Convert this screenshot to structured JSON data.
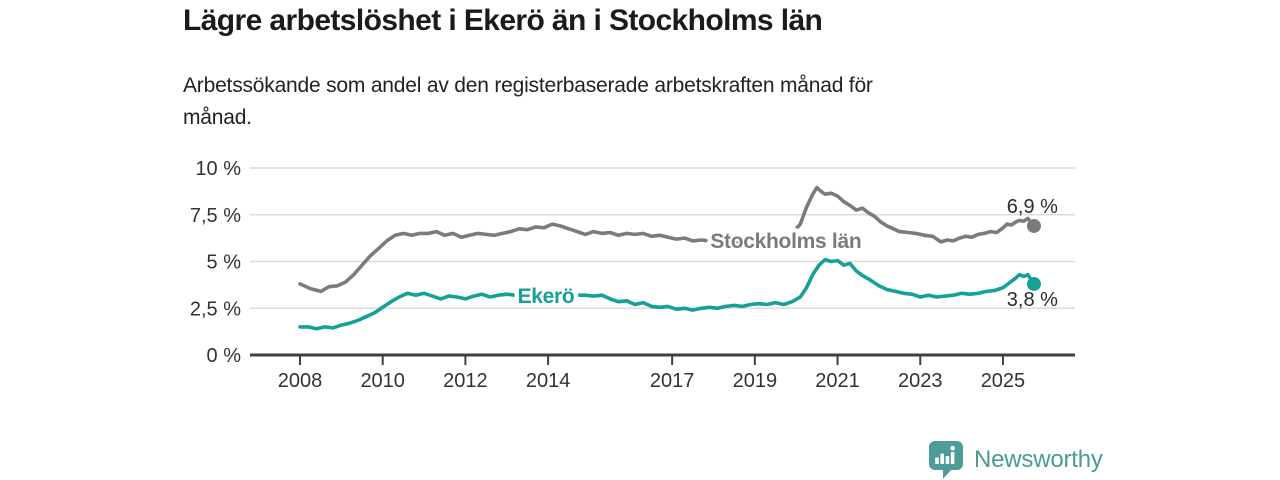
{
  "header": {
    "title": "Lägre arbetslöshet i Ekerö än i Stockholms län",
    "subtitle_lines": [
      "Arbetssökande som andel av den registerbaserade arbetskraften månad för",
      "månad."
    ]
  },
  "chart_data": {
    "type": "line",
    "title": "Lägre arbetslöshet i Ekerö än i Stockholms län",
    "xlabel": "",
    "ylabel": "",
    "unit": "%",
    "ylim": [
      0,
      10
    ],
    "x_range": [
      2008,
      2025.75
    ],
    "grid": "horizontal",
    "legend": "inline-labels",
    "y_ticks": [
      {
        "value": 0,
        "label": "0 %"
      },
      {
        "value": 2.5,
        "label": "2,5 %"
      },
      {
        "value": 5,
        "label": "5 %"
      },
      {
        "value": 7.5,
        "label": "7,5 %"
      },
      {
        "value": 10,
        "label": "10 %"
      }
    ],
    "x_ticks": [
      {
        "value": 2008,
        "label": "2008"
      },
      {
        "value": 2010,
        "label": "2010"
      },
      {
        "value": 2012,
        "label": "2012"
      },
      {
        "value": 2014,
        "label": "2014"
      },
      {
        "value": 2017,
        "label": "2017"
      },
      {
        "value": 2019,
        "label": "2019"
      },
      {
        "value": 2021,
        "label": "2021"
      },
      {
        "value": 2023,
        "label": "2023"
      },
      {
        "value": 2025,
        "label": "2025"
      }
    ],
    "series": [
      {
        "name": "Stockholms län",
        "color": "#7b7b7b",
        "end_value": 6.9,
        "end_value_label": "6,9 %",
        "end_label_position": "above",
        "label_pos": {
          "year": 2019.75,
          "value": 6.1
        },
        "points": [
          [
            2008.0,
            3.8
          ],
          [
            2008.25,
            3.55
          ],
          [
            2008.5,
            3.4
          ],
          [
            2008.7,
            3.65
          ],
          [
            2008.9,
            3.7
          ],
          [
            2009.1,
            3.9
          ],
          [
            2009.3,
            4.3
          ],
          [
            2009.5,
            4.8
          ],
          [
            2009.7,
            5.3
          ],
          [
            2009.9,
            5.7
          ],
          [
            2010.1,
            6.1
          ],
          [
            2010.3,
            6.4
          ],
          [
            2010.5,
            6.5
          ],
          [
            2010.7,
            6.4
          ],
          [
            2010.9,
            6.5
          ],
          [
            2011.1,
            6.5
          ],
          [
            2011.3,
            6.6
          ],
          [
            2011.5,
            6.4
          ],
          [
            2011.7,
            6.5
          ],
          [
            2011.9,
            6.3
          ],
          [
            2012.1,
            6.4
          ],
          [
            2012.3,
            6.5
          ],
          [
            2012.5,
            6.45
          ],
          [
            2012.7,
            6.4
          ],
          [
            2012.9,
            6.5
          ],
          [
            2013.1,
            6.6
          ],
          [
            2013.3,
            6.75
          ],
          [
            2013.5,
            6.7
          ],
          [
            2013.7,
            6.85
          ],
          [
            2013.9,
            6.8
          ],
          [
            2014.1,
            7.0
          ],
          [
            2014.3,
            6.9
          ],
          [
            2014.5,
            6.75
          ],
          [
            2014.7,
            6.6
          ],
          [
            2014.9,
            6.45
          ],
          [
            2015.1,
            6.6
          ],
          [
            2015.3,
            6.5
          ],
          [
            2015.5,
            6.55
          ],
          [
            2015.7,
            6.4
          ],
          [
            2015.9,
            6.5
          ],
          [
            2016.1,
            6.45
          ],
          [
            2016.3,
            6.5
          ],
          [
            2016.5,
            6.35
          ],
          [
            2016.7,
            6.4
          ],
          [
            2016.9,
            6.3
          ],
          [
            2017.1,
            6.2
          ],
          [
            2017.3,
            6.25
          ],
          [
            2017.5,
            6.1
          ],
          [
            2017.7,
            6.15
          ],
          [
            2017.9,
            6.1
          ],
          [
            2018.1,
            6.15
          ],
          [
            2018.3,
            6.05
          ],
          [
            2018.5,
            6.0
          ],
          [
            2018.7,
            6.1
          ],
          [
            2018.9,
            6.05
          ],
          [
            2019.1,
            6.15
          ],
          [
            2019.3,
            6.2
          ],
          [
            2019.5,
            6.25
          ],
          [
            2019.7,
            6.35
          ],
          [
            2019.9,
            6.5
          ],
          [
            2020.1,
            7.0
          ],
          [
            2020.25,
            7.9
          ],
          [
            2020.4,
            8.6
          ],
          [
            2020.5,
            8.95
          ],
          [
            2020.6,
            8.75
          ],
          [
            2020.7,
            8.6
          ],
          [
            2020.85,
            8.65
          ],
          [
            2021.0,
            8.5
          ],
          [
            2021.15,
            8.2
          ],
          [
            2021.3,
            8.0
          ],
          [
            2021.45,
            7.75
          ],
          [
            2021.6,
            7.85
          ],
          [
            2021.75,
            7.6
          ],
          [
            2021.9,
            7.4
          ],
          [
            2022.05,
            7.1
          ],
          [
            2022.2,
            6.9
          ],
          [
            2022.35,
            6.75
          ],
          [
            2022.5,
            6.6
          ],
          [
            2022.7,
            6.55
          ],
          [
            2022.9,
            6.5
          ],
          [
            2023.1,
            6.4
          ],
          [
            2023.3,
            6.35
          ],
          [
            2023.5,
            6.05
          ],
          [
            2023.65,
            6.15
          ],
          [
            2023.8,
            6.1
          ],
          [
            2023.95,
            6.25
          ],
          [
            2024.1,
            6.35
          ],
          [
            2024.25,
            6.3
          ],
          [
            2024.4,
            6.45
          ],
          [
            2024.55,
            6.5
          ],
          [
            2024.7,
            6.6
          ],
          [
            2024.85,
            6.55
          ],
          [
            2025.0,
            6.8
          ],
          [
            2025.1,
            7.0
          ],
          [
            2025.2,
            6.95
          ],
          [
            2025.3,
            7.1
          ],
          [
            2025.4,
            7.2
          ],
          [
            2025.5,
            7.15
          ],
          [
            2025.6,
            7.3
          ],
          [
            2025.75,
            6.9
          ]
        ]
      },
      {
        "name": "Ekerö",
        "color": "#16a096",
        "end_value": 3.8,
        "end_value_label": "3,8 %",
        "end_label_position": "below",
        "label_pos": {
          "year": 2013.95,
          "value": 3.15
        },
        "points": [
          [
            2008.0,
            1.5
          ],
          [
            2008.2,
            1.5
          ],
          [
            2008.4,
            1.4
          ],
          [
            2008.6,
            1.5
          ],
          [
            2008.8,
            1.45
          ],
          [
            2009.0,
            1.6
          ],
          [
            2009.2,
            1.7
          ],
          [
            2009.4,
            1.85
          ],
          [
            2009.6,
            2.05
          ],
          [
            2009.8,
            2.25
          ],
          [
            2010.0,
            2.55
          ],
          [
            2010.2,
            2.85
          ],
          [
            2010.4,
            3.1
          ],
          [
            2010.6,
            3.3
          ],
          [
            2010.8,
            3.2
          ],
          [
            2011.0,
            3.3
          ],
          [
            2011.2,
            3.15
          ],
          [
            2011.4,
            3.0
          ],
          [
            2011.6,
            3.15
          ],
          [
            2011.8,
            3.1
          ],
          [
            2012.0,
            3.0
          ],
          [
            2012.2,
            3.15
          ],
          [
            2012.4,
            3.25
          ],
          [
            2012.6,
            3.1
          ],
          [
            2012.8,
            3.2
          ],
          [
            2013.0,
            3.25
          ],
          [
            2013.2,
            3.2
          ],
          [
            2013.5,
            3.3
          ],
          [
            2013.8,
            3.2
          ],
          [
            2014.1,
            3.3
          ],
          [
            2014.4,
            3.25
          ],
          [
            2014.7,
            3.2
          ],
          [
            2014.9,
            3.2
          ],
          [
            2015.1,
            3.15
          ],
          [
            2015.3,
            3.2
          ],
          [
            2015.5,
            3.0
          ],
          [
            2015.7,
            2.85
          ],
          [
            2015.9,
            2.9
          ],
          [
            2016.1,
            2.7
          ],
          [
            2016.3,
            2.8
          ],
          [
            2016.5,
            2.6
          ],
          [
            2016.7,
            2.55
          ],
          [
            2016.9,
            2.6
          ],
          [
            2017.1,
            2.45
          ],
          [
            2017.3,
            2.5
          ],
          [
            2017.5,
            2.4
          ],
          [
            2017.7,
            2.5
          ],
          [
            2017.9,
            2.55
          ],
          [
            2018.1,
            2.5
          ],
          [
            2018.3,
            2.6
          ],
          [
            2018.5,
            2.65
          ],
          [
            2018.7,
            2.6
          ],
          [
            2018.9,
            2.7
          ],
          [
            2019.1,
            2.75
          ],
          [
            2019.3,
            2.7
          ],
          [
            2019.5,
            2.8
          ],
          [
            2019.7,
            2.7
          ],
          [
            2019.9,
            2.85
          ],
          [
            2020.1,
            3.1
          ],
          [
            2020.25,
            3.6
          ],
          [
            2020.4,
            4.3
          ],
          [
            2020.55,
            4.8
          ],
          [
            2020.7,
            5.1
          ],
          [
            2020.85,
            5.0
          ],
          [
            2021.0,
            5.05
          ],
          [
            2021.15,
            4.8
          ],
          [
            2021.3,
            4.9
          ],
          [
            2021.45,
            4.5
          ],
          [
            2021.6,
            4.25
          ],
          [
            2021.8,
            4.0
          ],
          [
            2022.0,
            3.7
          ],
          [
            2022.2,
            3.5
          ],
          [
            2022.4,
            3.4
          ],
          [
            2022.6,
            3.3
          ],
          [
            2022.8,
            3.25
          ],
          [
            2023.0,
            3.1
          ],
          [
            2023.2,
            3.2
          ],
          [
            2023.4,
            3.1
          ],
          [
            2023.6,
            3.15
          ],
          [
            2023.8,
            3.2
          ],
          [
            2024.0,
            3.3
          ],
          [
            2024.2,
            3.25
          ],
          [
            2024.4,
            3.3
          ],
          [
            2024.6,
            3.4
          ],
          [
            2024.8,
            3.45
          ],
          [
            2025.0,
            3.6
          ],
          [
            2025.15,
            3.85
          ],
          [
            2025.3,
            4.1
          ],
          [
            2025.4,
            4.3
          ],
          [
            2025.5,
            4.2
          ],
          [
            2025.6,
            4.3
          ],
          [
            2025.75,
            3.8
          ]
        ]
      }
    ]
  },
  "footer": {
    "brand": "Newsworthy"
  },
  "colors": {
    "grid": "#dcdcdc",
    "axis": "#3f3f3f",
    "axis_text": "#333333",
    "end_label_text": "#2d2d2d",
    "brand_teal": "#4a9a95",
    "logo_badge": "#4d9c98",
    "stockholm_line": "#7b7b7b",
    "ekero_line": "#16a096"
  }
}
